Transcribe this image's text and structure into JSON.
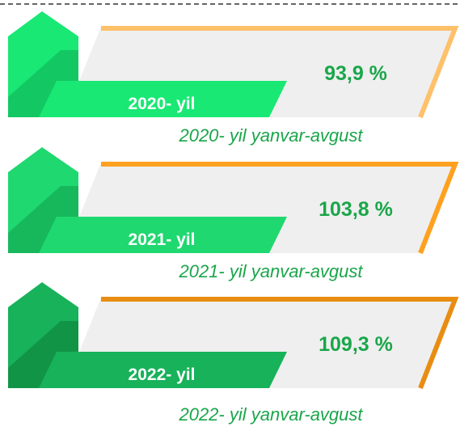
{
  "panels": [
    {
      "year_label": "2020- yil",
      "value": "93,9 %",
      "caption": "2020- yil yanvar-avgust",
      "green": "#19e874",
      "dark": "#13c862",
      "orange": "#ffc06a"
    },
    {
      "year_label": "2021- yil",
      "value": "103,8 %",
      "caption": "2021- yil yanvar-avgust",
      "green": "#1fd870",
      "dark": "#17b85c",
      "orange": "#ffa11f"
    },
    {
      "year_label": "2022- yil",
      "value": "109,3 %",
      "caption": "2022- yil yanvar-avgust",
      "green": "#17b25a",
      "dark": "#129447",
      "orange": "#e88d12"
    }
  ]
}
